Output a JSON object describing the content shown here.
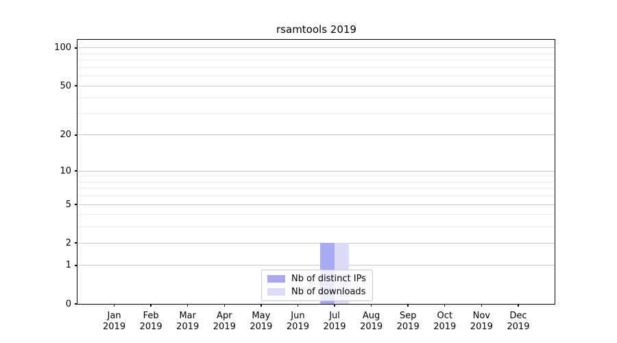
{
  "chart_data": {
    "type": "bar",
    "title": "rsamtools 2019",
    "xlabel": "",
    "ylabel": "",
    "yscale": "log1p",
    "ylim": [
      0,
      116
    ],
    "grid": true,
    "legend_position": "lower center",
    "categories": [
      "Jan",
      "Feb",
      "Mar",
      "Apr",
      "May",
      "Jun",
      "Jul",
      "Aug",
      "Sep",
      "Oct",
      "Nov",
      "Dec"
    ],
    "category_year": "2019",
    "y_major_ticks": [
      0,
      1,
      2,
      5,
      10,
      20,
      50,
      100
    ],
    "y_minor_gridlines": [
      3,
      4,
      6,
      7,
      8,
      9,
      30,
      40,
      60,
      70,
      80,
      90
    ],
    "series": [
      {
        "name": "Nb of distinct IPs",
        "color": "#a9a9f2",
        "values": [
          0,
          0,
          0,
          0,
          0,
          0,
          2,
          0,
          0,
          0,
          0,
          0
        ]
      },
      {
        "name": "Nb of downloads",
        "color": "#dcdcf8",
        "values": [
          0,
          0,
          0,
          0,
          0,
          0,
          2,
          0,
          0,
          0,
          0,
          0
        ]
      }
    ]
  },
  "colors": {
    "grid_major": "#c6c6c6",
    "grid_minor": "#ececec",
    "axis": "#000000",
    "background": "#ffffff"
  }
}
